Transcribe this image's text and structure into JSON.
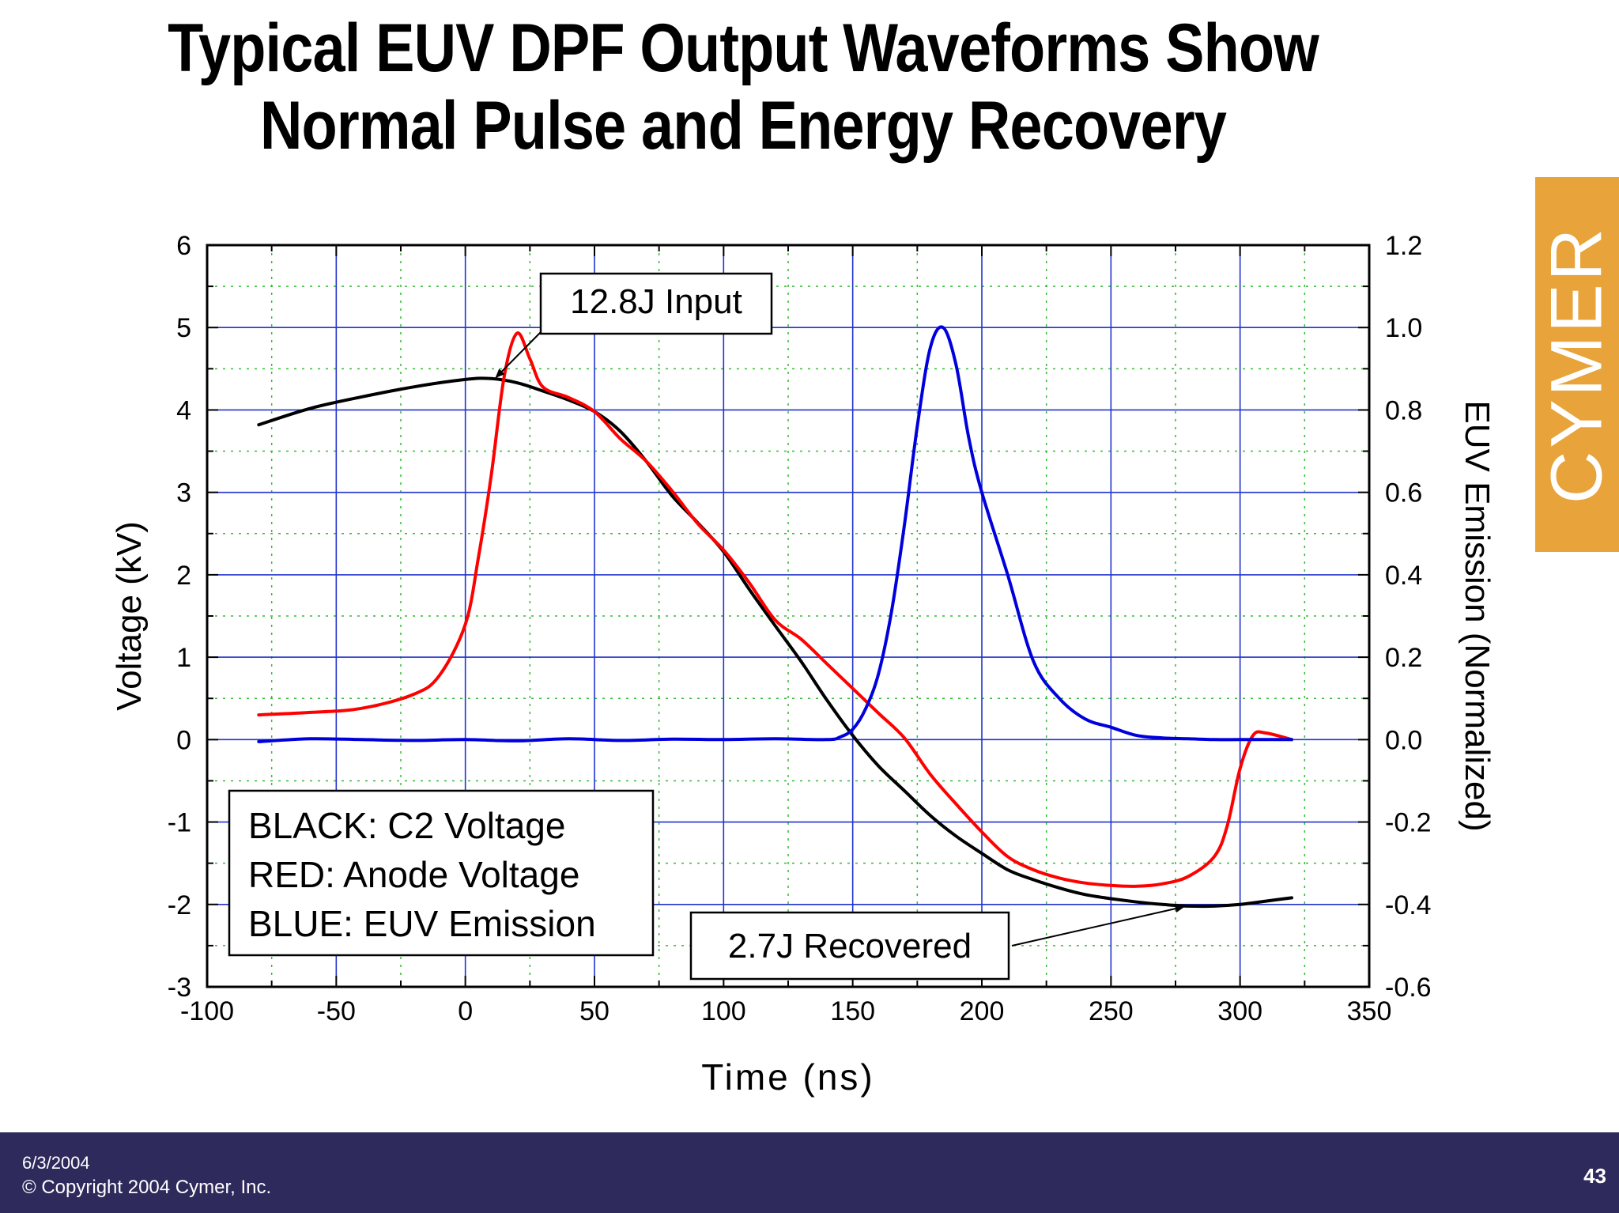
{
  "slide": {
    "title_line1": "Typical EUV DPF Output Waveforms Show",
    "title_line2": "Normal Pulse and Energy Recovery",
    "logo": "CYMER",
    "footer_date": "6/3/2004",
    "footer_copyright": "© Copyright 2004 Cymer, Inc.",
    "page_number": "43",
    "logo_color": "#e8a33a",
    "footer_color": "#2f2a5c"
  },
  "chart_data": {
    "type": "line",
    "title": "",
    "xlabel": "Time (ns)",
    "ylabel": "Voltage (kV)",
    "y2label": "EUV Emission (Normalized)",
    "xlim": [
      -100,
      350
    ],
    "ylim": [
      -3,
      6
    ],
    "y2lim": [
      -0.6,
      1.2
    ],
    "x_ticks": [
      "-100",
      "-50",
      "0",
      "50",
      "100",
      "150",
      "200",
      "250",
      "300",
      "350"
    ],
    "y_ticks": [
      "-3",
      "-2",
      "-1",
      "0",
      "1",
      "2",
      "3",
      "4",
      "5",
      "6"
    ],
    "y2_ticks": [
      "-0.6",
      "-0.4",
      "-0.2",
      "0.0",
      "0.2",
      "0.4",
      "0.6",
      "0.8",
      "1.0",
      "1.2"
    ],
    "grid": true,
    "legend": [
      "BLACK: C2 Voltage",
      "RED: Anode Voltage",
      "BLUE: EUV Emission"
    ],
    "legend_position": "lower-left",
    "series": [
      {
        "color": "#000000",
        "axis": "left",
        "x": [
          -80,
          -60,
          -40,
          -20,
          0,
          10,
          20,
          30,
          40,
          50,
          60,
          70,
          80,
          90,
          100,
          110,
          120,
          130,
          140,
          150,
          160,
          170,
          180,
          190,
          200,
          210,
          220,
          230,
          240,
          250,
          260,
          270,
          280,
          290,
          300,
          310,
          320
        ],
        "y": [
          3.82,
          4.02,
          4.16,
          4.28,
          4.37,
          4.38,
          4.33,
          4.23,
          4.12,
          3.98,
          3.74,
          3.38,
          2.96,
          2.63,
          2.28,
          1.82,
          1.38,
          0.95,
          0.48,
          0.05,
          -0.32,
          -0.62,
          -0.92,
          -1.17,
          -1.38,
          -1.58,
          -1.7,
          -1.8,
          -1.88,
          -1.93,
          -1.97,
          -2.0,
          -2.02,
          -2.02,
          -2.0,
          -1.96,
          -1.92
        ]
      },
      {
        "color": "#ff0000",
        "axis": "left",
        "x": [
          -80,
          -60,
          -40,
          -20,
          -10,
          0,
          5,
          10,
          15,
          20,
          25,
          30,
          40,
          50,
          60,
          70,
          80,
          90,
          100,
          110,
          120,
          130,
          140,
          150,
          160,
          170,
          180,
          190,
          200,
          210,
          220,
          230,
          240,
          250,
          260,
          270,
          280,
          290,
          295,
          300,
          305,
          310,
          320
        ],
        "y": [
          0.3,
          0.33,
          0.38,
          0.55,
          0.78,
          1.4,
          2.2,
          3.2,
          4.4,
          4.93,
          4.62,
          4.28,
          4.15,
          3.98,
          3.65,
          3.38,
          3.02,
          2.62,
          2.3,
          1.9,
          1.45,
          1.22,
          0.92,
          0.62,
          0.32,
          0.02,
          -0.42,
          -0.78,
          -1.12,
          -1.42,
          -1.58,
          -1.68,
          -1.74,
          -1.77,
          -1.78,
          -1.75,
          -1.66,
          -1.42,
          -1.05,
          -0.35,
          0.05,
          0.08,
          0.0
        ]
      },
      {
        "color": "#0000dd",
        "axis": "right",
        "x": [
          -80,
          -60,
          -40,
          -20,
          0,
          20,
          40,
          60,
          80,
          100,
          120,
          140,
          145,
          150,
          155,
          160,
          165,
          170,
          175,
          180,
          185,
          190,
          195,
          200,
          210,
          220,
          230,
          240,
          250,
          260,
          270,
          280,
          290,
          300,
          310,
          320
        ],
        "y": [
          -0.005,
          0.002,
          0.0,
          -0.002,
          0.0,
          -0.003,
          0.002,
          -0.002,
          0.001,
          0.0,
          0.002,
          0.0,
          0.006,
          0.025,
          0.075,
          0.16,
          0.31,
          0.52,
          0.76,
          0.95,
          1.0,
          0.91,
          0.73,
          0.6,
          0.4,
          0.19,
          0.1,
          0.05,
          0.03,
          0.01,
          0.004,
          0.002,
          0.0,
          0.0,
          0.0,
          0.0
        ]
      }
    ],
    "annotations": [
      {
        "text": "12.8J Input",
        "arrow_to": {
          "x": 12,
          "y": 4.4
        }
      },
      {
        "text": "2.7J Recovered",
        "arrow_to": {
          "x": 278,
          "y": -2.03
        }
      }
    ]
  }
}
